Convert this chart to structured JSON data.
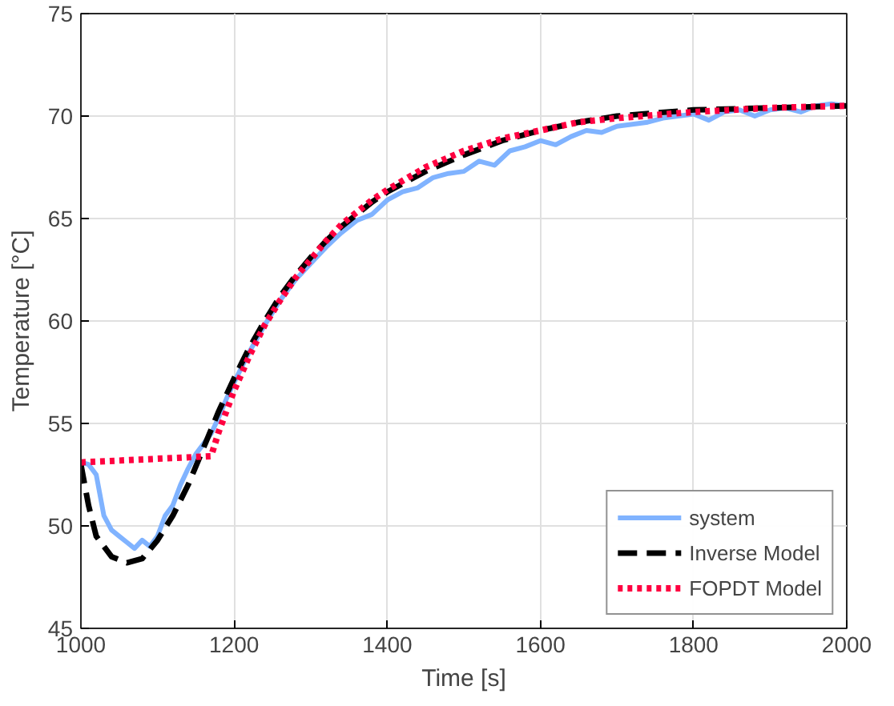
{
  "chart_data": {
    "type": "line",
    "xlabel": "Time [s]",
    "ylabel": "Temperature [°C]",
    "xlim": [
      1000,
      2000
    ],
    "ylim": [
      45,
      75
    ],
    "xticks": [
      1000,
      1200,
      1400,
      1600,
      1800,
      2000
    ],
    "yticks": [
      45,
      50,
      55,
      60,
      65,
      70,
      75
    ],
    "grid": true,
    "legend": "bottom right",
    "series": [
      {
        "name": "system",
        "color": "#80b3ff",
        "line_style": "solid",
        "x": [
          1000,
          1010,
          1020,
          1030,
          1040,
          1050,
          1060,
          1070,
          1080,
          1090,
          1100,
          1110,
          1120,
          1130,
          1140,
          1150,
          1160,
          1170,
          1180,
          1190,
          1200,
          1220,
          1240,
          1260,
          1280,
          1300,
          1320,
          1340,
          1360,
          1380,
          1400,
          1420,
          1440,
          1460,
          1480,
          1500,
          1520,
          1540,
          1560,
          1580,
          1600,
          1620,
          1640,
          1660,
          1680,
          1700,
          1720,
          1740,
          1760,
          1780,
          1800,
          1820,
          1840,
          1860,
          1880,
          1900,
          1920,
          1940,
          1960,
          1980,
          2000
        ],
        "values": [
          53.1,
          53.0,
          52.5,
          50.5,
          49.8,
          49.5,
          49.2,
          48.9,
          49.3,
          49.0,
          49.5,
          50.5,
          51.0,
          52.0,
          52.8,
          53.5,
          54.0,
          54.5,
          55.3,
          56.2,
          57.0,
          58.5,
          59.8,
          61.0,
          62.0,
          62.8,
          63.6,
          64.3,
          64.9,
          65.2,
          65.9,
          66.3,
          66.5,
          67.0,
          67.2,
          67.3,
          67.8,
          67.6,
          68.3,
          68.5,
          68.8,
          68.6,
          69.0,
          69.3,
          69.2,
          69.5,
          69.6,
          69.7,
          69.9,
          70.0,
          70.1,
          69.8,
          70.2,
          70.3,
          70.0,
          70.3,
          70.4,
          70.2,
          70.5,
          70.6,
          70.5
        ]
      },
      {
        "name": "Inverse Model",
        "color": "#000000",
        "line_style": "dashed",
        "x": [
          1000,
          1010,
          1020,
          1040,
          1060,
          1080,
          1100,
          1120,
          1140,
          1160,
          1180,
          1200,
          1220,
          1240,
          1260,
          1280,
          1300,
          1320,
          1340,
          1360,
          1380,
          1400,
          1450,
          1500,
          1550,
          1600,
          1650,
          1700,
          1800,
          1900,
          2000
        ],
        "values": [
          53.0,
          51.0,
          49.5,
          48.5,
          48.2,
          48.4,
          49.3,
          50.5,
          52.0,
          53.8,
          55.6,
          57.2,
          58.7,
          60.0,
          61.2,
          62.2,
          63.1,
          63.9,
          64.6,
          65.2,
          65.8,
          66.3,
          67.3,
          68.1,
          68.8,
          69.3,
          69.7,
          70.0,
          70.3,
          70.4,
          70.5
        ]
      },
      {
        "name": "FOPDT Model",
        "color": "#ff0040",
        "line_style": "dotted",
        "x": [
          1000,
          1170,
          1180,
          1200,
          1220,
          1240,
          1260,
          1280,
          1300,
          1320,
          1340,
          1360,
          1380,
          1400,
          1450,
          1500,
          1550,
          1600,
          1650,
          1700,
          1800,
          1900,
          2000
        ],
        "values": [
          53.1,
          53.4,
          54.6,
          56.6,
          58.3,
          59.8,
          61.0,
          62.1,
          63.0,
          63.9,
          64.7,
          65.3,
          65.9,
          66.4,
          67.5,
          68.3,
          68.9,
          69.3,
          69.7,
          69.9,
          70.2,
          70.4,
          70.5
        ]
      }
    ]
  }
}
